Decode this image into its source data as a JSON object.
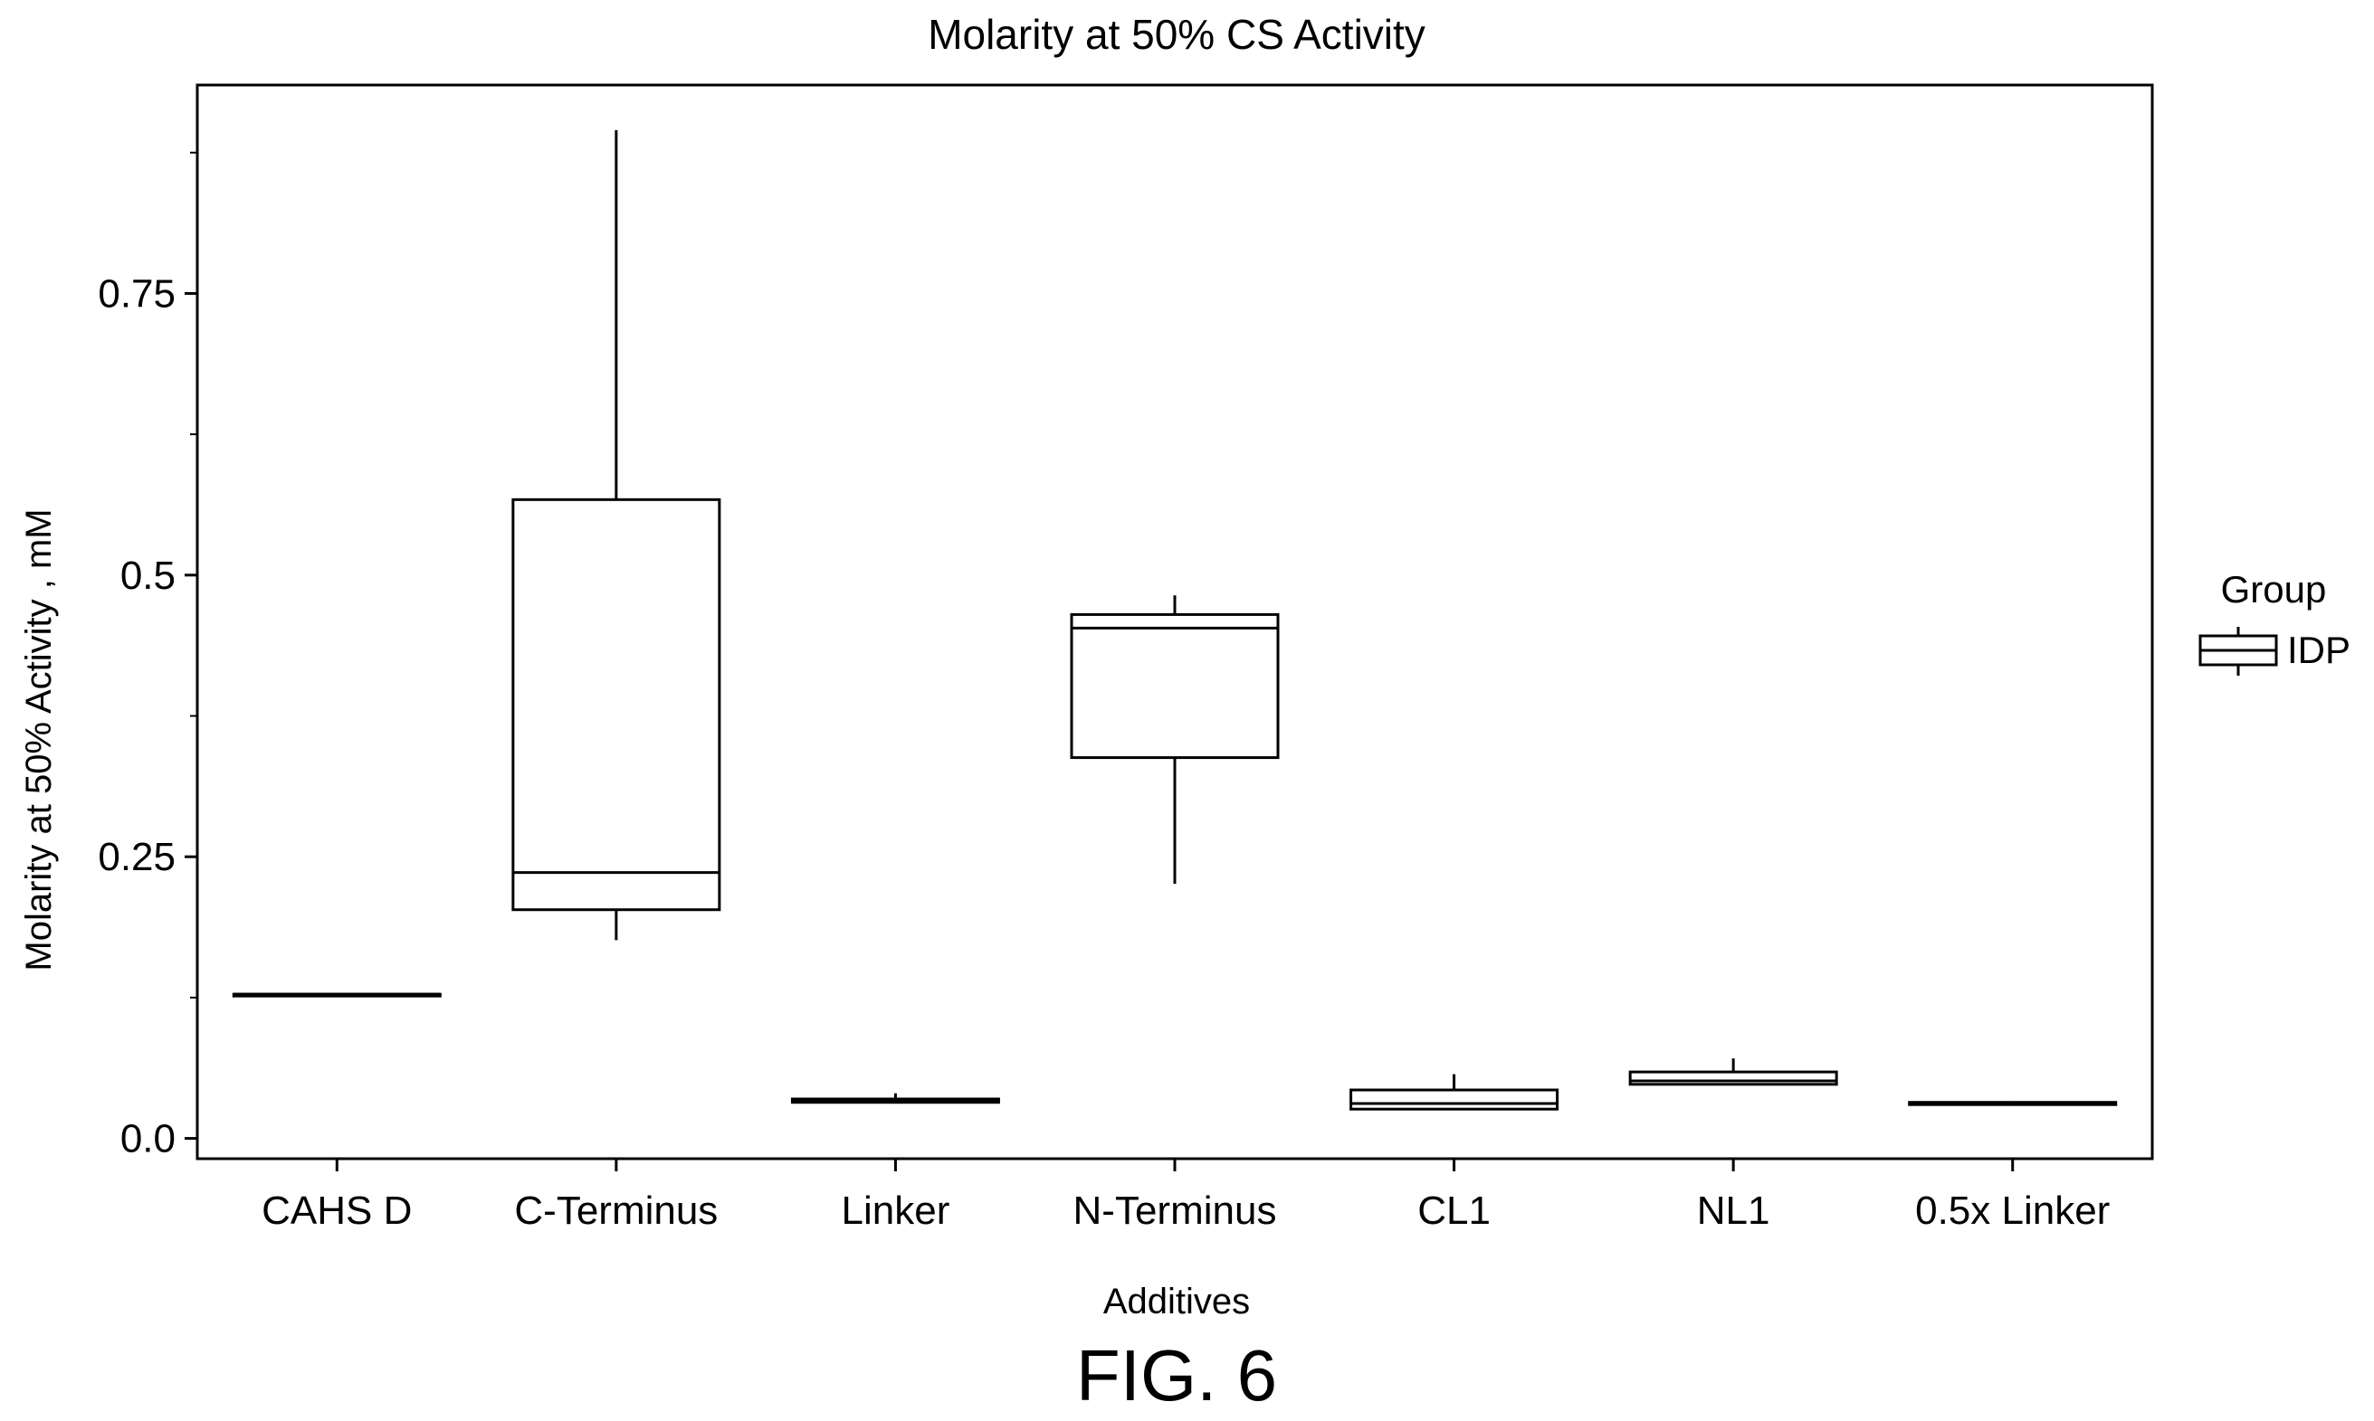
{
  "figure_label": "FIG. 6",
  "chart_data": {
    "type": "box",
    "title": "Molarity at 50% CS Activity",
    "xlabel": "Additives",
    "ylabel": "Molarity at 50% Activity , mM",
    "categories": [
      "CAHS D",
      "C-Terminus",
      "Linker",
      "N-Terminus",
      "CL1",
      "NL1",
      "0.5x Linker"
    ],
    "ylim": [
      -0.018,
      0.935
    ],
    "yticks": [
      0.0,
      0.25,
      0.5,
      0.75
    ],
    "ytick_labels": [
      "0.0",
      "0.25",
      "0.5",
      "0.75"
    ],
    "legend": {
      "title": "Group",
      "entries": [
        "IDP"
      ],
      "position": "right"
    },
    "series": [
      {
        "name": "IDP",
        "boxes": [
          {
            "category": "CAHS D",
            "min": 0.128,
            "q1": 0.128,
            "median": 0.128,
            "q3": 0.128,
            "max": 0.128
          },
          {
            "category": "C-Terminus",
            "min": 0.176,
            "q1": 0.203,
            "median": 0.236,
            "q3": 0.567,
            "max": 0.895
          },
          {
            "category": "Linker",
            "min": 0.031,
            "q1": 0.032,
            "median": 0.033,
            "q3": 0.035,
            "max": 0.04
          },
          {
            "category": "N-Terminus",
            "min": 0.226,
            "q1": 0.338,
            "median": 0.453,
            "q3": 0.465,
            "max": 0.482
          },
          {
            "category": "CL1",
            "min": 0.026,
            "q1": 0.026,
            "median": 0.031,
            "q3": 0.043,
            "max": 0.057
          },
          {
            "category": "NL1",
            "min": 0.048,
            "q1": 0.048,
            "median": 0.051,
            "q3": 0.059,
            "max": 0.071
          },
          {
            "category": "0.5x Linker",
            "min": 0.03,
            "q1": 0.03,
            "median": 0.031,
            "q3": 0.032,
            "max": 0.033
          }
        ]
      }
    ],
    "grid": false
  }
}
